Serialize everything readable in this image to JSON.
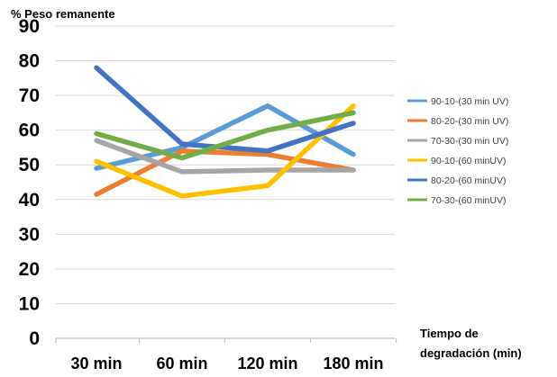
{
  "chart_data": {
    "type": "line",
    "title": "",
    "ylabel": "% Peso remanente",
    "xlabel": "Tiempo de degradación (min)",
    "xlabel_lines": [
      "Tiempo de",
      "degradación (min)"
    ],
    "categories": [
      "30 min",
      "60 min",
      "120 min",
      "180 min"
    ],
    "y_ticks": [
      "0",
      "10",
      "20",
      "30",
      "40",
      "50",
      "60",
      "70",
      "80",
      "90"
    ],
    "ylim": [
      0,
      90
    ],
    "grid": true,
    "legend_position": "right",
    "series": [
      {
        "name": "90-10-(30 min UV)",
        "color": "#5b9bd5",
        "values": [
          49,
          55,
          67,
          53
        ]
      },
      {
        "name": "80-20-(30 min UV)",
        "color": "#ed7d31",
        "values": [
          41.5,
          54,
          53,
          48.5
        ]
      },
      {
        "name": "70-30-(30 min UV)",
        "color": "#a5a5a5",
        "values": [
          57,
          48,
          48.5,
          48.5
        ]
      },
      {
        "name": "90-10-(60 minUV)",
        "color": "#ffc000",
        "values": [
          51,
          41,
          44,
          67
        ]
      },
      {
        "name": "80-20-(60 minUV)",
        "color": "#4472c4",
        "values": [
          78,
          56,
          54,
          62
        ]
      },
      {
        "name": "70-30-(60 minUV)",
        "color": "#70ad47",
        "values": [
          59,
          52,
          60,
          65
        ]
      }
    ]
  }
}
